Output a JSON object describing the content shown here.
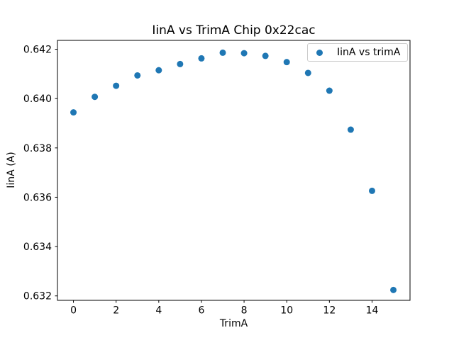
{
  "figure": {
    "background": "#ffffff"
  },
  "chart_data": {
    "type": "scatter",
    "title": "IinA vs TrimA Chip 0x22cac",
    "xlabel": "TrimA",
    "ylabel": "IinA (A)",
    "series": [
      {
        "name": "IinA vs trimA",
        "x": [
          0,
          1,
          2,
          3,
          4,
          5,
          6,
          7,
          8,
          9,
          10,
          11,
          12,
          13,
          14,
          15
        ],
        "y": [
          0.63944,
          0.64007,
          0.64052,
          0.64094,
          0.64115,
          0.6414,
          0.64163,
          0.64186,
          0.64184,
          0.64173,
          0.64148,
          0.64104,
          0.64032,
          0.63874,
          0.63626,
          0.63224
        ],
        "color": "#1f77b4",
        "marker": "circle"
      }
    ],
    "xlim": [
      -0.75,
      15.78
    ],
    "ylim": [
      0.63182,
      0.64236
    ],
    "xticks": [
      0,
      2,
      4,
      6,
      8,
      10,
      12,
      14
    ],
    "xtick_labels": [
      "0",
      "2",
      "4",
      "6",
      "8",
      "10",
      "12",
      "14"
    ],
    "yticks": [
      0.632,
      0.634,
      0.636,
      0.638,
      0.64,
      0.642
    ],
    "ytick_labels": [
      "0.632",
      "0.634",
      "0.636",
      "0.638",
      "0.640",
      "0.642"
    ],
    "grid": false,
    "legend": {
      "position": "upper right",
      "entries": [
        "IinA vs trimA"
      ]
    }
  },
  "colors": {
    "marker": "#1f77b4",
    "spine": "#000000",
    "tick": "#000000",
    "legend_border": "#cccccc",
    "background": "#ffffff"
  }
}
